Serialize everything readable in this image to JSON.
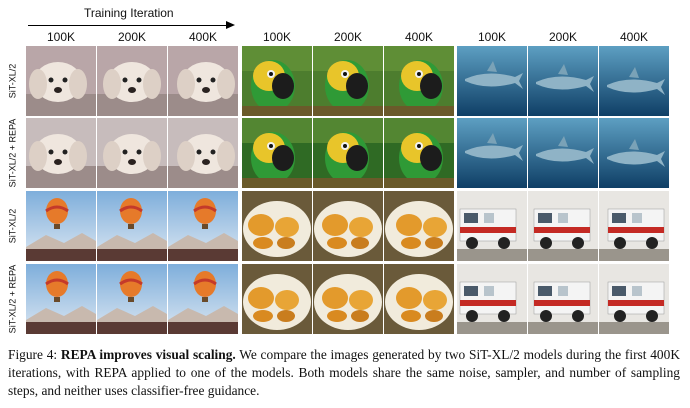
{
  "header": {
    "axis_label": "Training Iteration",
    "columns": [
      "100K",
      "200K",
      "400K",
      "100K",
      "200K",
      "400K",
      "100K",
      "200K",
      "400K"
    ]
  },
  "rows": [
    {
      "label": "SiT-XL/2",
      "subjects": [
        "dog",
        "parrot",
        "shark"
      ]
    },
    {
      "label": "SiT-XL/2 + REPA",
      "subjects": [
        "dog",
        "parrot",
        "shark"
      ]
    },
    {
      "label": "SiT-XL/2",
      "subjects": [
        "balloon",
        "burger",
        "firetruck"
      ]
    },
    {
      "label": "SiT-XL/2 + REPA",
      "subjects": [
        "balloon",
        "burger",
        "firetruck"
      ]
    }
  ],
  "caption": {
    "figure_label": "Figure 4:",
    "bold_text": "REPA improves visual scaling.",
    "body_text": "We compare the images generated by two SiT-XL/2 models during the first 400K iterations, with REPA applied to one of the models. Both models share the same noise, sampler, and number of sampling steps, and neither uses classifier-free guidance."
  },
  "colors": {
    "dog": [
      "#b8a8a4",
      "#e6dcd6"
    ],
    "parrot": [
      "#3f7a2c",
      "#e8c42a"
    ],
    "shark": [
      "#1a5a82",
      "#5f9fbe"
    ],
    "balloon": [
      "#a7c3e3",
      "#6b5a52"
    ],
    "burger": [
      "#f0e8d8",
      "#e09a2c"
    ],
    "firetruck": [
      "#eeeeee",
      "#c42a24"
    ]
  }
}
